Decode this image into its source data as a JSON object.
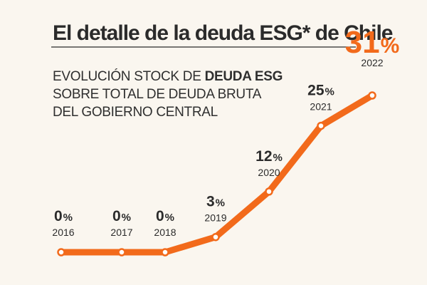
{
  "chart_data": {
    "type": "line",
    "title": "El detalle de la deuda ESG* de Chile",
    "subtitle": {
      "line1_prefix": "EVOLUCIÓN STOCK DE ",
      "line1_bold": "DEUDA ESG",
      "line2": "SOBRE TOTAL DE DEUDA BRUTA",
      "line3": "DEL GOBIERNO CENTRAL"
    },
    "x": [
      "2016",
      "2017",
      "2018",
      "2019",
      "2020",
      "2021",
      "2022"
    ],
    "values": [
      0,
      0,
      0,
      3,
      12,
      25,
      31
    ],
    "value_labels": [
      "0",
      "0",
      "0",
      "3",
      "12",
      "25",
      "31"
    ],
    "unit": "%",
    "ylim": [
      0,
      31
    ],
    "grid": false,
    "colors": {
      "line": "#f26a1b",
      "background": "#faf6ef",
      "text": "#2b2b2b",
      "highlight": "#f26a1b"
    }
  }
}
